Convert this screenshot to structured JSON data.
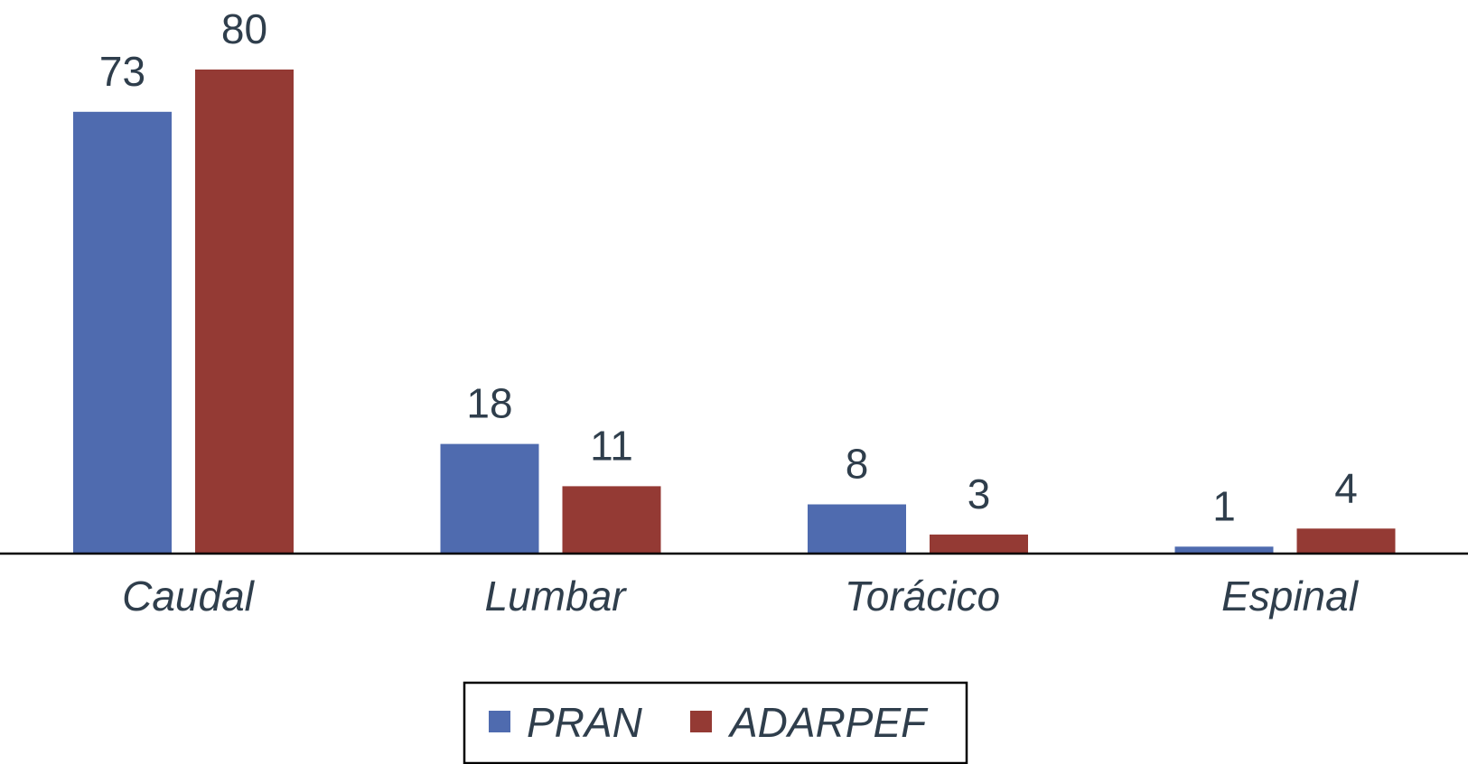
{
  "chart_data": {
    "type": "bar",
    "title": "",
    "xlabel": "",
    "ylabel": "",
    "categories": [
      "Caudal",
      "Lumbar",
      "Torácico",
      "Espinal"
    ],
    "series": [
      {
        "name": "PRAN",
        "color": "#4f6baf",
        "values": [
          73,
          18,
          8,
          1
        ]
      },
      {
        "name": "ADARPEF",
        "color": "#943a34",
        "values": [
          80,
          11,
          3,
          4
        ]
      }
    ],
    "ylim": [
      0,
      80
    ],
    "grid": false,
    "y_axis_visible": false,
    "data_labels": true,
    "legend_placement": "bottom-center"
  }
}
